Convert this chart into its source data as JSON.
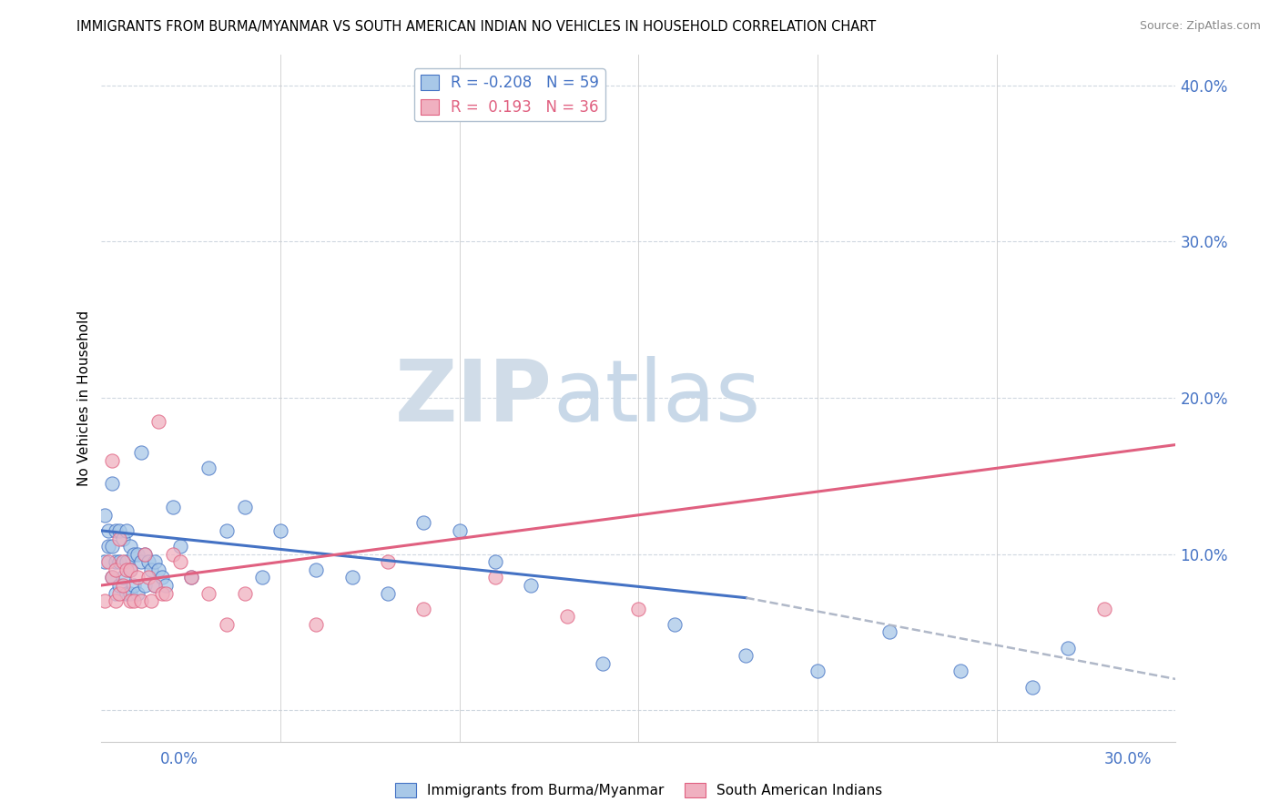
{
  "title": "IMMIGRANTS FROM BURMA/MYANMAR VS SOUTH AMERICAN INDIAN NO VEHICLES IN HOUSEHOLD CORRELATION CHART",
  "source": "Source: ZipAtlas.com",
  "ylabel": "No Vehicles in Household",
  "ylabel_right_ticks": [
    0.0,
    0.1,
    0.2,
    0.3,
    0.4
  ],
  "ylabel_right_labels": [
    "",
    "10.0%",
    "20.0%",
    "30.0%",
    "40.0%"
  ],
  "xmin": 0.0,
  "xmax": 0.3,
  "ymin": -0.02,
  "ymax": 0.42,
  "legend_label1": "Immigrants from Burma/Myanmar",
  "legend_label2": "South American Indians",
  "watermark_zip": "ZIP",
  "watermark_atlas": "atlas",
  "R1": -0.208,
  "N1": 59,
  "R2": 0.193,
  "N2": 36,
  "color_blue": "#a8c8e8",
  "color_pink": "#f0b0c0",
  "color_blue_line": "#4472c4",
  "color_pink_line": "#e06080",
  "color_blue_dark": "#4472c4",
  "color_pink_dark": "#e06080",
  "color_gray_dashed": "#b0b8c8",
  "blue_x": [
    0.001,
    0.001,
    0.002,
    0.002,
    0.003,
    0.003,
    0.003,
    0.004,
    0.004,
    0.004,
    0.005,
    0.005,
    0.005,
    0.006,
    0.006,
    0.007,
    0.007,
    0.007,
    0.008,
    0.008,
    0.008,
    0.009,
    0.009,
    0.01,
    0.01,
    0.011,
    0.011,
    0.012,
    0.012,
    0.013,
    0.014,
    0.015,
    0.015,
    0.016,
    0.017,
    0.018,
    0.02,
    0.022,
    0.025,
    0.03,
    0.035,
    0.04,
    0.045,
    0.05,
    0.06,
    0.07,
    0.08,
    0.09,
    0.1,
    0.11,
    0.12,
    0.14,
    0.16,
    0.18,
    0.2,
    0.22,
    0.24,
    0.26,
    0.27
  ],
  "blue_y": [
    0.125,
    0.095,
    0.115,
    0.105,
    0.145,
    0.105,
    0.085,
    0.115,
    0.095,
    0.075,
    0.115,
    0.095,
    0.08,
    0.11,
    0.085,
    0.115,
    0.095,
    0.075,
    0.105,
    0.09,
    0.075,
    0.1,
    0.08,
    0.1,
    0.075,
    0.165,
    0.095,
    0.1,
    0.08,
    0.095,
    0.09,
    0.095,
    0.08,
    0.09,
    0.085,
    0.08,
    0.13,
    0.105,
    0.085,
    0.155,
    0.115,
    0.13,
    0.085,
    0.115,
    0.09,
    0.085,
    0.075,
    0.12,
    0.115,
    0.095,
    0.08,
    0.03,
    0.055,
    0.035,
    0.025,
    0.05,
    0.025,
    0.015,
    0.04
  ],
  "pink_x": [
    0.001,
    0.002,
    0.003,
    0.003,
    0.004,
    0.004,
    0.005,
    0.005,
    0.006,
    0.006,
    0.007,
    0.008,
    0.008,
    0.009,
    0.01,
    0.011,
    0.012,
    0.013,
    0.014,
    0.015,
    0.016,
    0.017,
    0.018,
    0.02,
    0.022,
    0.025,
    0.03,
    0.035,
    0.04,
    0.06,
    0.08,
    0.09,
    0.11,
    0.13,
    0.15,
    0.28
  ],
  "pink_y": [
    0.07,
    0.095,
    0.16,
    0.085,
    0.07,
    0.09,
    0.075,
    0.11,
    0.08,
    0.095,
    0.09,
    0.07,
    0.09,
    0.07,
    0.085,
    0.07,
    0.1,
    0.085,
    0.07,
    0.08,
    0.185,
    0.075,
    0.075,
    0.1,
    0.095,
    0.085,
    0.075,
    0.055,
    0.075,
    0.055,
    0.095,
    0.065,
    0.085,
    0.06,
    0.065,
    0.065
  ]
}
